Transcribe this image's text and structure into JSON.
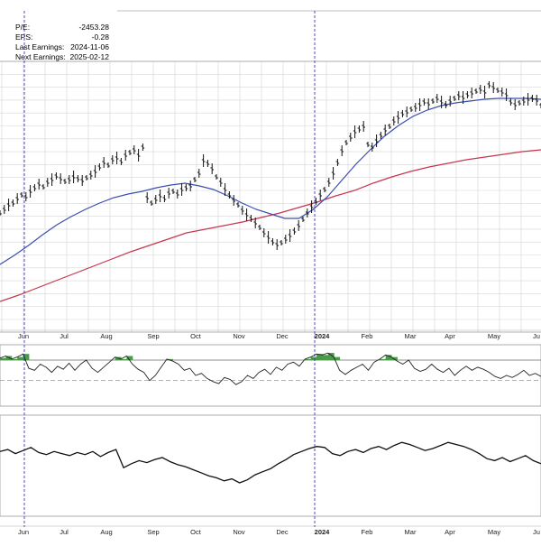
{
  "info": {
    "pe_label": "P/E:",
    "pe_value": "-2453.28",
    "eps_label": "EPS:",
    "eps_value": "-0.28",
    "last_earnings_label": "Last Earnings:",
    "last_earnings_value": "2024-11-06",
    "next_earnings_label": "Next Earnings:",
    "next_earnings_value": "2025-02-12"
  },
  "colors": {
    "price": "#111111",
    "ma_short": "#3a4fb0",
    "ma_long": "#c8354c",
    "separator": "#3a3ab8",
    "rsi_fill": "#4a9a4a",
    "grid": "#d6d6d6"
  },
  "chart_data": {
    "type": "line",
    "title": "",
    "xlabel": "",
    "ylabel": "",
    "grid": true,
    "x_ticks": [
      "Jun",
      "Jul",
      "Aug",
      "Sep",
      "Oct",
      "Nov",
      "Dec",
      "2024",
      "Feb",
      "Mar",
      "Apr",
      "May",
      "Ju"
    ],
    "series": [
      {
        "role": "price-bars",
        "values": [
          55.2,
          55.6,
          56.1,
          56.3,
          56.8,
          57.2,
          57.0,
          57.6,
          58.0,
          58.4,
          58.1,
          58.6,
          58.9,
          59.3,
          59.0,
          58.7,
          58.9,
          59.2,
          59.0,
          58.8,
          59.1,
          59.4,
          59.8,
          60.3,
          60.8,
          60.5,
          61.1,
          61.3,
          60.9,
          61.6,
          61.9,
          62.2,
          61.6,
          62.5,
          56.9,
          56.3,
          56.7,
          57.1,
          56.8,
          57.4,
          57.6,
          57.3,
          57.8,
          58.0,
          58.2,
          58.9,
          59.6,
          61.0,
          60.7,
          60.1,
          59.2,
          58.6,
          57.8,
          57.2,
          56.6,
          56.1,
          55.5,
          55.0,
          54.6,
          54.1,
          53.6,
          53.0,
          52.5,
          52.0,
          51.7,
          51.9,
          52.3,
          52.7,
          53.2,
          53.8,
          54.5,
          55.2,
          55.9,
          56.5,
          57.2,
          57.8,
          58.6,
          59.6,
          60.8,
          62.1,
          63.0,
          63.6,
          64.2,
          64.5,
          64.8,
          62.8,
          62.5,
          63.2,
          63.8,
          64.4,
          64.8,
          65.4,
          65.8,
          66.2,
          66.4,
          66.7,
          66.9,
          67.2,
          67.5,
          67.3,
          67.6,
          67.9,
          67.5,
          67.2,
          67.6,
          67.9,
          68.2,
          68.0,
          68.3,
          68.5,
          68.7,
          68.9,
          68.6,
          69.4,
          69.1,
          68.8,
          68.6,
          68.3,
          67.5,
          67.2,
          67.4,
          67.6,
          67.8,
          67.9,
          67.7,
          67.1
        ],
        "ylim": [
          42,
          72
        ]
      },
      {
        "name": "",
        "role": "moving-average-short",
        "values": [
          49.5,
          50.5,
          51.6,
          52.8,
          53.9,
          54.8,
          55.6,
          56.3,
          56.9,
          57.3,
          57.6,
          58.0,
          58.3,
          58.5,
          58.2,
          57.8,
          57.1,
          56.3,
          55.6,
          55.1,
          54.6,
          54.6,
          55.6,
          57.0,
          58.8,
          60.6,
          62.2,
          63.7,
          64.9,
          65.9,
          66.6,
          67.1,
          67.4,
          67.6,
          67.8,
          67.9,
          67.9,
          67.9,
          67.8
        ],
        "ylim": [
          42,
          72
        ]
      },
      {
        "name": "",
        "role": "moving-average-long",
        "values": [
          45.4,
          46.1,
          46.9,
          47.7,
          48.5,
          49.3,
          50.1,
          50.9,
          51.6,
          52.3,
          53.0,
          53.4,
          53.8,
          54.2,
          54.7,
          55.2,
          55.8,
          56.4,
          57.1,
          57.7,
          58.5,
          59.2,
          59.8,
          60.3,
          60.7,
          61.1,
          61.4,
          61.7,
          62.0,
          62.2
        ],
        "ylim": [
          42,
          72
        ]
      },
      {
        "name": "",
        "role": "indicator-1",
        "values": [
          72,
          74,
          71,
          73,
          76,
          62,
          60,
          66,
          63,
          58,
          64,
          61,
          67,
          60,
          66,
          70,
          62,
          58,
          63,
          68,
          73,
          71,
          74,
          66,
          61,
          58,
          50,
          55,
          63,
          71,
          69,
          66,
          60,
          62,
          55,
          57,
          52,
          49,
          47,
          53,
          51,
          46,
          49,
          55,
          52,
          58,
          61,
          56,
          63,
          60,
          66,
          68,
          64,
          71,
          73,
          76,
          75,
          77,
          73,
          60,
          56,
          60,
          63,
          66,
          60,
          68,
          71,
          75,
          73,
          69,
          66,
          70,
          62,
          59,
          61,
          66,
          61,
          58,
          62,
          55,
          60,
          64,
          60,
          63,
          61,
          58,
          54,
          52,
          55,
          53,
          56,
          60,
          55,
          57,
          54
        ],
        "ylim": [
          25,
          85
        ]
      },
      {
        "name": "",
        "role": "indicator-2",
        "values": [
          64,
          66,
          62,
          65,
          68,
          63,
          61,
          64,
          62,
          60,
          63,
          61,
          64,
          59,
          63,
          66,
          48,
          52,
          55,
          53,
          56,
          58,
          54,
          51,
          49,
          46,
          43,
          40,
          38,
          35,
          37,
          33,
          36,
          41,
          44,
          47,
          52,
          56,
          61,
          64,
          67,
          69,
          68,
          62,
          60,
          64,
          66,
          63,
          67,
          69,
          66,
          70,
          73,
          71,
          68,
          65,
          67,
          70,
          73,
          71,
          69,
          66,
          62,
          57,
          55,
          58,
          54,
          57,
          60,
          55,
          52
        ],
        "ylim": [
          0,
          100
        ]
      }
    ]
  }
}
